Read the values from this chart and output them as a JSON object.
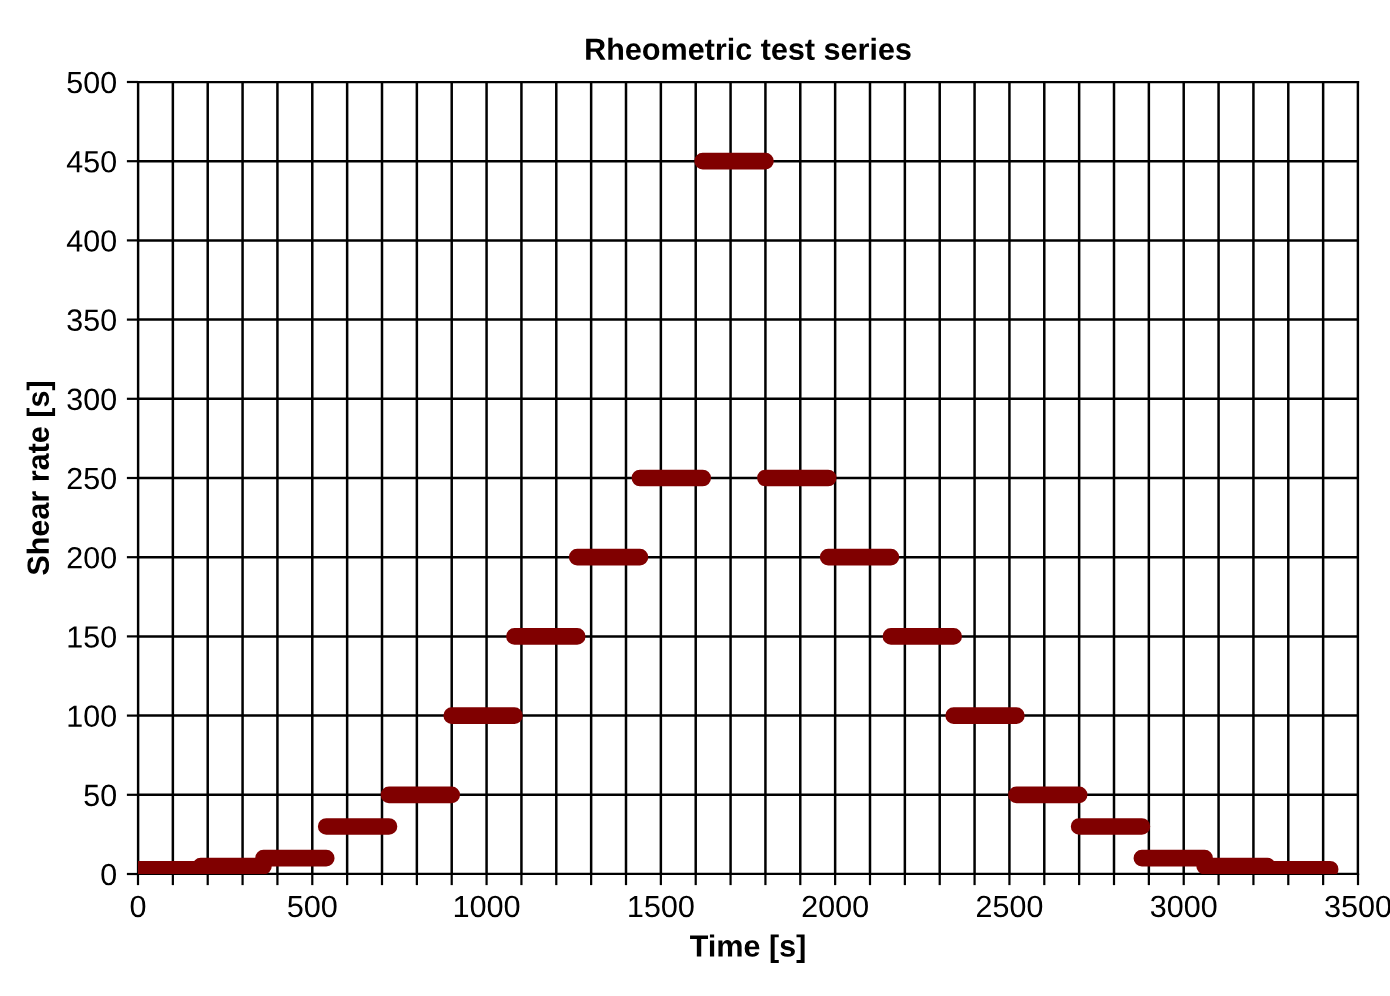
{
  "chart_data": {
    "type": "line",
    "title": "Rheometric test series",
    "xlabel": "Time [s]",
    "ylabel": "Shear rate [s]",
    "series": [
      {
        "color": "#800000",
        "x": [
          0,
          180,
          180,
          360,
          360,
          540,
          540,
          720,
          720,
          900,
          900,
          1080,
          1080,
          1260,
          1260,
          1440,
          1440,
          1620,
          1620,
          1800,
          1800,
          1980,
          1980,
          2160,
          2160,
          2340,
          2340,
          2520,
          2520,
          2700,
          2700,
          2880,
          2880,
          3060,
          3060,
          3240,
          3240,
          3420
        ],
        "values": [
          3,
          3,
          5,
          5,
          10,
          10,
          30,
          30,
          50,
          50,
          100,
          100,
          150,
          150,
          200,
          200,
          250,
          250,
          450,
          450,
          250,
          250,
          200,
          200,
          150,
          150,
          100,
          100,
          50,
          50,
          30,
          30,
          10,
          10,
          5,
          5,
          3,
          3
        ]
      }
    ],
    "xlim": [
      0,
      3500
    ],
    "xticks": [
      0,
      {
        "value": 100,
        "label": null
      },
      {
        "value": 200,
        "label": null
      },
      {
        "value": 300,
        "label": null
      },
      {
        "value": 400,
        "label": null
      },
      500,
      {
        "value": 600,
        "label": null
      },
      {
        "value": 700,
        "label": null
      },
      {
        "value": 800,
        "label": null
      },
      {
        "value": 900,
        "label": null
      },
      1000,
      {
        "value": 1100,
        "label": null
      },
      {
        "value": 1200,
        "label": null
      },
      {
        "value": 1300,
        "label": null
      },
      {
        "value": 1400,
        "label": null
      },
      1500,
      {
        "value": 1600,
        "label": null
      },
      {
        "value": 1700,
        "label": null
      },
      {
        "value": 1800,
        "label": null
      },
      {
        "value": 1900,
        "label": null
      },
      2000,
      {
        "value": 2100,
        "label": null
      },
      {
        "value": 2200,
        "label": null
      },
      {
        "value": 2300,
        "label": null
      },
      {
        "value": 2400,
        "label": null
      },
      2500,
      {
        "value": 2600,
        "label": null
      },
      {
        "value": 2700,
        "label": null
      },
      {
        "value": 2800,
        "label": null
      },
      {
        "value": 2900,
        "label": null
      },
      3000,
      {
        "value": 3100,
        "label": null
      },
      {
        "value": 3200,
        "label": null
      },
      {
        "value": 3300,
        "label": null
      },
      {
        "value": 3400,
        "label": null
      },
      3500
    ],
    "ylim": [
      0,
      500
    ],
    "yticks": [
      0,
      50,
      100,
      150,
      200,
      250,
      300,
      350,
      400,
      450,
      500
    ],
    "grid": true,
    "line_style": "solid",
    "marker": "none",
    "legend": false
  }
}
